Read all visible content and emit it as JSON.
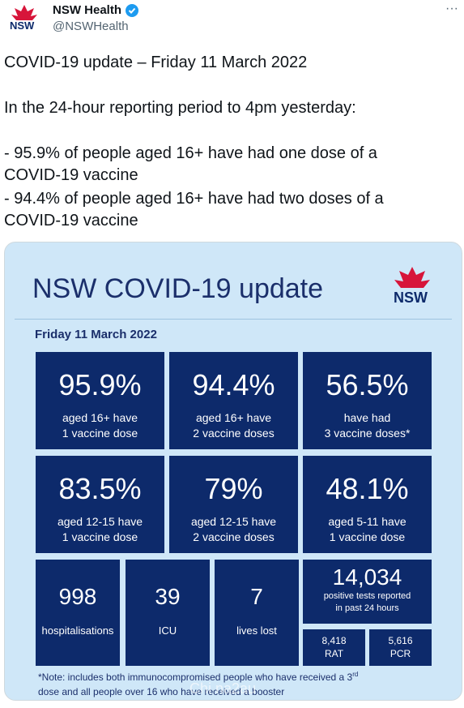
{
  "account": {
    "name": "NSW Health",
    "handle": "@NSWHealth",
    "logo_text": "NSW",
    "more": "···"
  },
  "tweet": {
    "lines": [
      "COVID-19 update – Friday 11 March 2022",
      "In the 24-hour reporting period to 4pm yesterday:",
      "- 95.9% of people aged 16+ have had one dose of a",
      "COVID-19 vaccine",
      "- 94.4% of people aged 16+ have had two doses of a",
      "COVID-19 vaccine"
    ]
  },
  "infographic": {
    "title": "NSW COVID-19 update",
    "logo_text": "NSW",
    "date": "Friday 11 March 2022",
    "tiles": [
      {
        "value": "95.9%",
        "label": [
          "aged 16+ have",
          "1 vaccine dose"
        ]
      },
      {
        "value": "94.4%",
        "label": [
          "aged 16+ have",
          "2 vaccine doses"
        ]
      },
      {
        "value": "56.5%",
        "label": [
          "have had",
          "3 vaccine doses*"
        ]
      },
      {
        "value": "83.5%",
        "label": [
          "aged 12-15 have",
          "1 vaccine dose"
        ]
      },
      {
        "value": "79%",
        "label": [
          "aged 12-15 have",
          "2 vaccine doses"
        ]
      },
      {
        "value": "48.1%",
        "label": [
          "aged 5-11 have",
          "1 vaccine dose"
        ]
      }
    ],
    "stats": [
      {
        "value": "998",
        "label": "hospitalisations"
      },
      {
        "value": "39",
        "label": "ICU"
      },
      {
        "value": "7",
        "label": "lives lost"
      }
    ],
    "tests": {
      "value": "14,034",
      "label": [
        "positive tests reported",
        "in past 24 hours"
      ],
      "parts": [
        {
          "value": "8,418",
          "label": "RAT"
        },
        {
          "value": "5,616",
          "label": "PCR"
        }
      ]
    },
    "note": {
      "before": "*Note: includes both immunocompromised  people who have received a 3",
      "sup": "rd",
      "after": "dose and all people over 16 who have received a booster"
    },
    "watermark": "Chi na2au"
  }
}
